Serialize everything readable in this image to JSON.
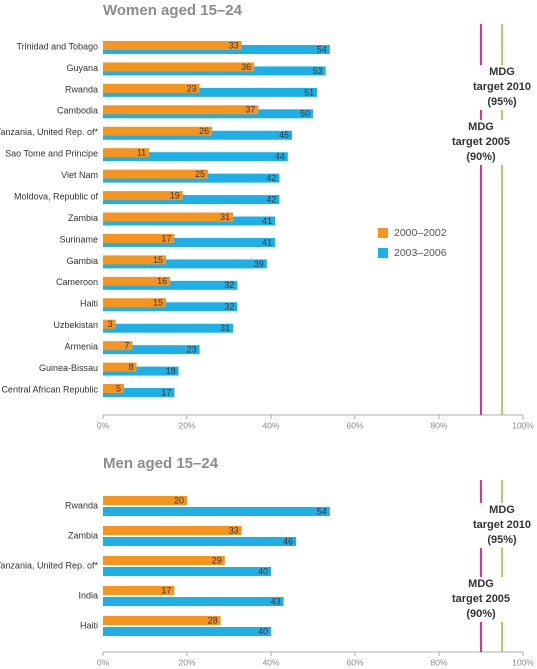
{
  "chart_data": [
    {
      "type": "bar",
      "orientation": "horizontal",
      "title": "Women aged 15–24",
      "categories": [
        "Trinidad and Tobago",
        "Guyana",
        "Rwanda",
        "Cambodia",
        "Tanzania, United Rep. of*",
        "Sao Tome and Principe",
        "Viet Nam",
        "Moldova, Republic of",
        "Zambia",
        "Suriname",
        "Gambia",
        "Cameroon",
        "Haiti",
        "Uzbekistan",
        "Armenia",
        "Guinea-Bissau",
        "Central African Republic"
      ],
      "series": [
        {
          "name": "2000–2002",
          "color": "#f7941d",
          "values": [
            33,
            36,
            23,
            37,
            26,
            11,
            25,
            19,
            31,
            17,
            15,
            16,
            15,
            3,
            7,
            8,
            5
          ]
        },
        {
          "name": "2003–2006",
          "color": "#1cb0e6",
          "values": [
            54,
            53,
            51,
            50,
            45,
            44,
            42,
            42,
            41,
            41,
            39,
            32,
            32,
            31,
            23,
            18,
            17
          ]
        }
      ],
      "xlim": [
        0,
        100
      ],
      "xticks": [
        {
          "value": 0,
          "label": "0%"
        },
        {
          "value": 20,
          "label": "20%"
        },
        {
          "value": 40,
          "label": "40%"
        },
        {
          "value": 60,
          "label": "60%"
        },
        {
          "value": 80,
          "label": "80%"
        },
        {
          "value": 100,
          "label": "100%"
        }
      ],
      "legend": true,
      "annotations": [
        {
          "lines": [
            "MDG",
            "target 2010",
            "(95%)"
          ],
          "value": 95,
          "color": "#8dc63f"
        },
        {
          "lines": [
            "MDG",
            "target 2005",
            "(90%)"
          ],
          "value": 90,
          "color": "#d6007a"
        }
      ]
    },
    {
      "type": "bar",
      "orientation": "horizontal",
      "title": "Men aged 15–24",
      "categories": [
        "Rwanda",
        "Zambia",
        "Tanzania, United Rep. of*",
        "India",
        "Haiti"
      ],
      "series": [
        {
          "color": "#f7941d",
          "values": [
            20,
            33,
            29,
            17,
            28
          ]
        },
        {
          "color": "#1cb0e6",
          "values": [
            54,
            46,
            40,
            43,
            40
          ]
        }
      ],
      "xlim": [
        0,
        100
      ],
      "xticks": [
        {
          "value": 0,
          "label": "0%"
        },
        {
          "value": 20,
          "label": "20%"
        },
        {
          "value": 40,
          "label": "40%"
        },
        {
          "value": 60,
          "label": "60%"
        },
        {
          "value": 80,
          "label": "80%"
        },
        {
          "value": 100,
          "label": "100%"
        }
      ],
      "legend": false,
      "annotations": [
        {
          "lines": [
            "MDG",
            "target 2010",
            "(95%)"
          ],
          "value": 95,
          "color": "#8dc63f"
        },
        {
          "lines": [
            "MDG",
            "target 2005",
            "(90%)"
          ],
          "value": 90,
          "color": "#d6007a"
        }
      ]
    }
  ]
}
